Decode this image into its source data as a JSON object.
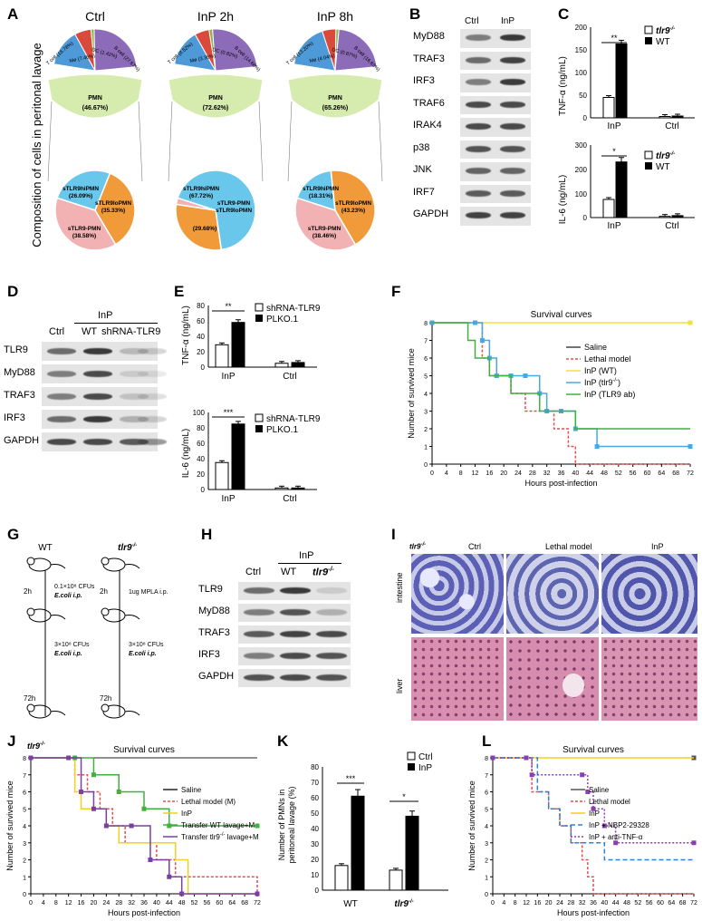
{
  "panels": {
    "A": {
      "label": "A",
      "ylabel": "Composition of cells in peritonal lavage",
      "pies": [
        {
          "title": "Ctrl",
          "pmn": "PMN",
          "pmn_pct": "(46.67%)",
          "top_labels": [
            "T cell (16.78%)",
            "Mø (7.46%)",
            "DC (1.42%)",
            "B cell (27.67%)"
          ],
          "bottom_labels": [
            "sTLR9hiPMN",
            "(26.09%)",
            "sTLR9loPMN",
            "(35.33%)",
            "sTLR9-PMN",
            "(38.58%)"
          ]
        },
        {
          "title": "InP 2h",
          "pmn": "PMN",
          "pmn_pct": "(72.62%)",
          "top_labels": [
            "T cell (8.52%)",
            "Mø (3.36%)",
            "DC (0.82%)",
            "B cell (14.68%)"
          ],
          "bottom_labels": [
            "sTLR9hiPMN",
            "(67.72%)",
            "sTLR9-PMN",
            "sTLR9loPMN",
            "(29.68%)"
          ]
        },
        {
          "title": "InP 8h",
          "pmn": "PMN",
          "pmn_pct": "(65.26%)",
          "top_labels": [
            "T cell (13.20%)",
            "Mø (4.04%)",
            "DC (0.87%)",
            "B cell (16.63%)"
          ],
          "bottom_labels": [
            "sTLR9hiPMN",
            "(18.31%)",
            "sTLR9loPMN",
            "(43.23%)",
            "sTLR9-PMN",
            "(38.46%)"
          ]
        }
      ]
    },
    "B": {
      "label": "B",
      "columns": [
        "Ctrl",
        "InP"
      ],
      "rows": [
        "MyD88",
        "TRAF3",
        "IRF3",
        "TRAF6",
        "IRAK4",
        "p38",
        "JNK",
        "IRF7",
        "GAPDH"
      ]
    },
    "C": {
      "label": "C",
      "top": {
        "ylabel": "TNF-α (ng/mL)",
        "yticks": [
          "0",
          "50",
          "100",
          "150",
          "200"
        ],
        "categories": [
          "InP",
          "Ctrl"
        ],
        "sig": "**",
        "legend": [
          "tlr9",
          "-/-",
          "WT"
        ]
      },
      "bottom": {
        "ylabel": "IL-6 (ng/mL)",
        "yticks": [
          "0",
          "100",
          "200",
          "300"
        ],
        "categories": [
          "InP",
          "Ctrl"
        ],
        "sig": "*",
        "legend": [
          "tlr9",
          "-/-",
          "WT"
        ]
      }
    },
    "D": {
      "label": "D",
      "group": "InP",
      "columns": [
        "Ctrl",
        "WT",
        "shRNA-TLR9"
      ],
      "rows": [
        "TLR9",
        "MyD88",
        "TRAF3",
        "IRF3",
        "GAPDH"
      ]
    },
    "E": {
      "label": "E",
      "top": {
        "ylabel": "TNF-α (ng/mL)",
        "yticks": [
          "0",
          "20",
          "40",
          "60",
          "80"
        ],
        "categories": [
          "InP",
          "Ctrl"
        ],
        "sig": "**",
        "legend": [
          "shRNA-TLR9",
          "PLKO.1"
        ]
      },
      "bottom": {
        "ylabel": "IL-6 (ng/mL)",
        "yticks": [
          "0",
          "20",
          "40",
          "60",
          "80",
          "100"
        ],
        "categories": [
          "InP",
          "Ctrl"
        ],
        "sig": "***",
        "legend": [
          "shRNA-TLR9",
          "PLKO.1"
        ]
      }
    },
    "F": {
      "label": "F",
      "title": "Survival curves",
      "xlabel": "Hours post-infection",
      "ylabel": "Number of survived mice",
      "legend": [
        "Saline",
        "Lethal model",
        "InP (WT)",
        "InP (tlr9",
        "-/-",
        ")",
        "InP (TLR9 ab)"
      ]
    },
    "G": {
      "label": "G",
      "wt": "WT",
      "tlr9": "tlr9",
      "sup": "-/-",
      "steps_wt": [
        "2h",
        "0.1×10⁸ CFUs",
        "E.coli i.p.",
        "3×10⁸ CFUs",
        "E.coli i.p.",
        "72h"
      ],
      "steps_ko": [
        "2h",
        "1ug MPLA i.p.",
        "3×10⁸ CFUs",
        "E.coli i.p.",
        "72h"
      ]
    },
    "H": {
      "label": "H",
      "group": "InP",
      "columns": [
        "Ctrl",
        "WT",
        "tlr9",
        "-/-"
      ],
      "rows": [
        "TLR9",
        "MyD88",
        "TRAF3",
        "IRF3",
        "GAPDH"
      ]
    },
    "I": {
      "label": "I",
      "corner": "tlr9",
      "sup": "-/-",
      "columns": [
        "Ctrl",
        "Lethal model",
        "InP"
      ],
      "rows": [
        "intestine",
        "liver"
      ]
    },
    "J": {
      "label": "J",
      "corner": "tlr9",
      "sup": "-/-",
      "title": "Survival curves",
      "xlabel": "Hours post-infection",
      "ylabel": "Number of survived mice",
      "legend": [
        "Saline",
        "Lethal model (M)",
        "InP",
        "Transfer WT lavage+M",
        "Transfer tlr9",
        "-/-",
        " lavage+M"
      ]
    },
    "K": {
      "label": "K",
      "ylabel": "Number of PMNs in",
      "ylabel2": "peritoneal lavage (%)",
      "yticks": [
        "0",
        "10",
        "20",
        "30",
        "40",
        "50",
        "60",
        "70",
        "80"
      ],
      "categories": [
        "WT",
        "tlr9",
        "-/-"
      ],
      "sig": [
        "***",
        "*"
      ],
      "legend": [
        "Ctrl",
        "InP"
      ]
    },
    "L": {
      "label": "L",
      "title": "Survival curves",
      "xlabel": "Hours post-infection",
      "ylabel": "Number of survived mice",
      "legend": [
        "Saline",
        "Lethal model",
        "InP",
        "InP + NBP2-29328",
        "InP + anti-TNF-α"
      ]
    }
  },
  "chart_data": [
    {
      "type": "bar",
      "panel": "C-top",
      "title": "",
      "ylabel": "TNF-α (ng/mL)",
      "ylim": [
        0,
        200
      ],
      "categories": [
        "InP",
        "Ctrl"
      ],
      "series": [
        {
          "name": "tlr9-/-",
          "values": [
            45,
            3
          ]
        },
        {
          "name": "WT",
          "values": [
            163,
            4
          ]
        }
      ]
    },
    {
      "type": "bar",
      "panel": "C-bottom",
      "title": "",
      "ylabel": "IL-6 (ng/mL)",
      "ylim": [
        0,
        300
      ],
      "categories": [
        "InP",
        "Ctrl"
      ],
      "series": [
        {
          "name": "tlr9-/-",
          "values": [
            75,
            5
          ]
        },
        {
          "name": "WT",
          "values": [
            230,
            8
          ]
        }
      ]
    },
    {
      "type": "bar",
      "panel": "E-top",
      "title": "",
      "ylabel": "TNF-α (ng/mL)",
      "ylim": [
        0,
        80
      ],
      "categories": [
        "InP",
        "Ctrl"
      ],
      "series": [
        {
          "name": "shRNA-TLR9",
          "values": [
            29,
            5
          ]
        },
        {
          "name": "PLKO.1",
          "values": [
            58,
            6
          ]
        }
      ]
    },
    {
      "type": "bar",
      "panel": "E-bottom",
      "title": "",
      "ylabel": "IL-6 (ng/mL)",
      "ylim": [
        0,
        100
      ],
      "categories": [
        "InP",
        "Ctrl"
      ],
      "series": [
        {
          "name": "shRNA-TLR9",
          "values": [
            35,
            2
          ]
        },
        {
          "name": "PLKO.1",
          "values": [
            85,
            2
          ]
        }
      ]
    },
    {
      "type": "bar",
      "panel": "K",
      "title": "",
      "ylabel": "Number of PMNs in peritoneal lavage (%)",
      "ylim": [
        0,
        80
      ],
      "categories": [
        "WT",
        "tlr9-/-"
      ],
      "series": [
        {
          "name": "Ctrl",
          "values": [
            16,
            13
          ]
        },
        {
          "name": "InP",
          "values": [
            61,
            48
          ]
        }
      ]
    },
    {
      "type": "line",
      "panel": "F",
      "title": "Survival curves",
      "xlabel": "Hours post-infection",
      "ylabel": "Number of survived mice",
      "xlim": [
        0,
        72
      ],
      "ylim": [
        0,
        8
      ],
      "step": true,
      "xticks": [
        0,
        4,
        8,
        12,
        16,
        20,
        24,
        28,
        32,
        36,
        40,
        44,
        48,
        52,
        56,
        60,
        64,
        68,
        72
      ],
      "series": [
        {
          "name": "Saline",
          "x": [
            0,
            72
          ],
          "y": [
            8,
            8
          ]
        },
        {
          "name": "Lethal model",
          "x": [
            0,
            12,
            14,
            16,
            22,
            26,
            30,
            34,
            38,
            40,
            72
          ],
          "y": [
            8,
            8,
            6,
            5,
            4,
            3,
            3,
            2,
            1,
            0,
            0
          ]
        },
        {
          "name": "InP (WT)",
          "x": [
            0,
            72
          ],
          "y": [
            8,
            8
          ]
        },
        {
          "name": "InP (tlr9-/-)",
          "x": [
            0,
            12,
            14,
            16,
            18,
            22,
            26,
            30,
            32,
            36,
            40,
            46,
            72
          ],
          "y": [
            8,
            8,
            7,
            6,
            5,
            5,
            5,
            4,
            3,
            3,
            2,
            1,
            1
          ]
        },
        {
          "name": "InP (TLR9 ab)",
          "x": [
            0,
            10,
            12,
            14,
            16,
            18,
            22,
            26,
            30,
            32,
            36,
            40,
            72
          ],
          "y": [
            8,
            7,
            6,
            6,
            5,
            5,
            4,
            4,
            3,
            3,
            3,
            2,
            2
          ]
        }
      ]
    },
    {
      "type": "line",
      "panel": "J",
      "title": "Survival curves",
      "xlabel": "Hours post-infection",
      "ylabel": "Number of survived mice",
      "xlim": [
        0,
        72
      ],
      "ylim": [
        0,
        8
      ],
      "step": true,
      "xticks": [
        0,
        4,
        8,
        12,
        16,
        20,
        24,
        28,
        32,
        36,
        40,
        44,
        48,
        52,
        56,
        60,
        64,
        68,
        72
      ],
      "series": [
        {
          "name": "Saline",
          "x": [
            0,
            72
          ],
          "y": [
            8,
            8
          ]
        },
        {
          "name": "Lethal model (M)",
          "x": [
            0,
            12,
            14,
            18,
            22,
            26,
            30,
            34,
            40,
            46,
            72
          ],
          "y": [
            8,
            8,
            7,
            6,
            5,
            4,
            3,
            3,
            2,
            1,
            0
          ]
        },
        {
          "name": "InP",
          "x": [
            0,
            12,
            14,
            16,
            20,
            24,
            28,
            32,
            40,
            46,
            50,
            72
          ],
          "y": [
            8,
            8,
            6,
            5,
            5,
            4,
            3,
            3,
            3,
            2,
            0,
            0
          ]
        },
        {
          "name": "Transfer WT lavage+M",
          "x": [
            0,
            14,
            20,
            28,
            36,
            44,
            72
          ],
          "y": [
            8,
            8,
            7,
            6,
            5,
            4,
            4
          ]
        },
        {
          "name": "Transfer tlr9-/- lavage+M",
          "x": [
            0,
            12,
            16,
            20,
            24,
            32,
            38,
            44,
            48,
            72
          ],
          "y": [
            8,
            8,
            6,
            5,
            4,
            4,
            2,
            1,
            0,
            0
          ]
        }
      ]
    },
    {
      "type": "line",
      "panel": "L",
      "title": "Survival curves",
      "xlabel": "Hours post-infection",
      "ylabel": "Number of survived mice",
      "xlim": [
        0,
        72
      ],
      "ylim": [
        0,
        8
      ],
      "step": true,
      "xticks": [
        0,
        4,
        8,
        12,
        16,
        20,
        24,
        28,
        32,
        36,
        40,
        44,
        48,
        52,
        56,
        60,
        64,
        68,
        72
      ],
      "series": [
        {
          "name": "Saline",
          "x": [
            0,
            72
          ],
          "y": [
            8,
            8
          ]
        },
        {
          "name": "Lethal model",
          "x": [
            0,
            12,
            14,
            20,
            24,
            28,
            30,
            32,
            34,
            36,
            72
          ],
          "y": [
            8,
            8,
            6,
            5,
            4,
            3,
            3,
            2,
            1,
            0,
            0
          ]
        },
        {
          "name": "InP",
          "x": [
            0,
            72
          ],
          "y": [
            8,
            8
          ]
        },
        {
          "name": "InP + NBP2-29328",
          "x": [
            0,
            12,
            16,
            20,
            24,
            28,
            32,
            40,
            72
          ],
          "y": [
            8,
            8,
            6,
            5,
            4,
            3,
            3,
            2,
            2
          ]
        },
        {
          "name": "InP + anti-TNF-α",
          "x": [
            0,
            12,
            14,
            32,
            34,
            36,
            40,
            44,
            72
          ],
          "y": [
            8,
            8,
            7,
            7,
            6,
            5,
            4,
            3,
            3
          ]
        }
      ]
    }
  ]
}
